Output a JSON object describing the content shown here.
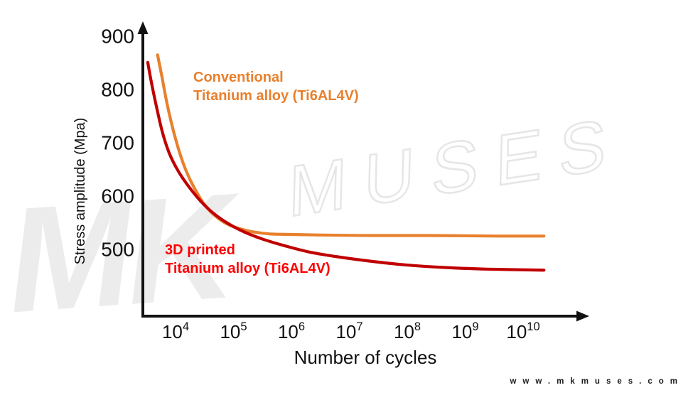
{
  "page": {
    "background": "#ffffff"
  },
  "branding": {
    "watermark_mk": "MK",
    "watermark_muses": "MUSES",
    "website": "www.mkmuses.com",
    "watermark_color": "#ececec",
    "watermark_outline_color": "#e6e6e6"
  },
  "chart_data": {
    "type": "line",
    "title": "",
    "xlabel": "Number of cycles",
    "ylabel": "Stress amplitude (Mpa)",
    "x_scale": "log10",
    "x_tick_exponents": [
      4,
      5,
      6,
      7,
      8,
      9,
      10
    ],
    "x_tick_base": "10",
    "y_ticks": [
      900,
      800,
      700,
      600,
      500
    ],
    "ylim": [
      430,
      920
    ],
    "xlim_exponents": [
      3.4,
      10.7
    ],
    "grid": false,
    "legend_position": "inline-labels",
    "axis_color": "#111111",
    "points_format": "[log10_cycles, stress_amplitude_mpa]",
    "series": [
      {
        "name": "Conventional Titanium alloy (Ti6AL4V)",
        "label_lines": [
          "Conventional",
          "Titanium alloy (Ti6AL4V)"
        ],
        "color": "#E8802D",
        "label_color": "#E8802D",
        "points": [
          [
            3.69,
            865
          ],
          [
            3.77,
            821
          ],
          [
            3.85,
            775
          ],
          [
            3.95,
            728
          ],
          [
            4.06,
            685
          ],
          [
            4.18,
            648
          ],
          [
            4.32,
            616
          ],
          [
            4.48,
            587
          ],
          [
            4.65,
            566
          ],
          [
            4.85,
            550
          ],
          [
            5.07,
            540
          ],
          [
            5.33,
            533
          ],
          [
            5.63,
            529
          ],
          [
            6.0,
            528
          ],
          [
            6.49,
            527
          ],
          [
            7.35,
            526
          ],
          [
            8.33,
            526
          ],
          [
            9.56,
            525
          ],
          [
            10.36,
            525
          ]
        ]
      },
      {
        "name": "3D printed Titanium alloy (Ti6AL4V)",
        "label_lines": [
          "3D printed",
          "Titanium alloy (Ti6AL4V)"
        ],
        "color": "#C00000",
        "label_color": "#FF0000",
        "points": [
          [
            3.52,
            851
          ],
          [
            3.58,
            815
          ],
          [
            3.67,
            768
          ],
          [
            3.77,
            721
          ],
          [
            3.89,
            681
          ],
          [
            4.04,
            648
          ],
          [
            4.22,
            619
          ],
          [
            4.43,
            591
          ],
          [
            4.65,
            568
          ],
          [
            4.9,
            549
          ],
          [
            5.18,
            533
          ],
          [
            5.51,
            519
          ],
          [
            5.88,
            507
          ],
          [
            6.31,
            495
          ],
          [
            6.8,
            486
          ],
          [
            7.35,
            478
          ],
          [
            7.96,
            471
          ],
          [
            8.64,
            466
          ],
          [
            9.37,
            463
          ],
          [
            10.36,
            461
          ]
        ]
      }
    ]
  }
}
